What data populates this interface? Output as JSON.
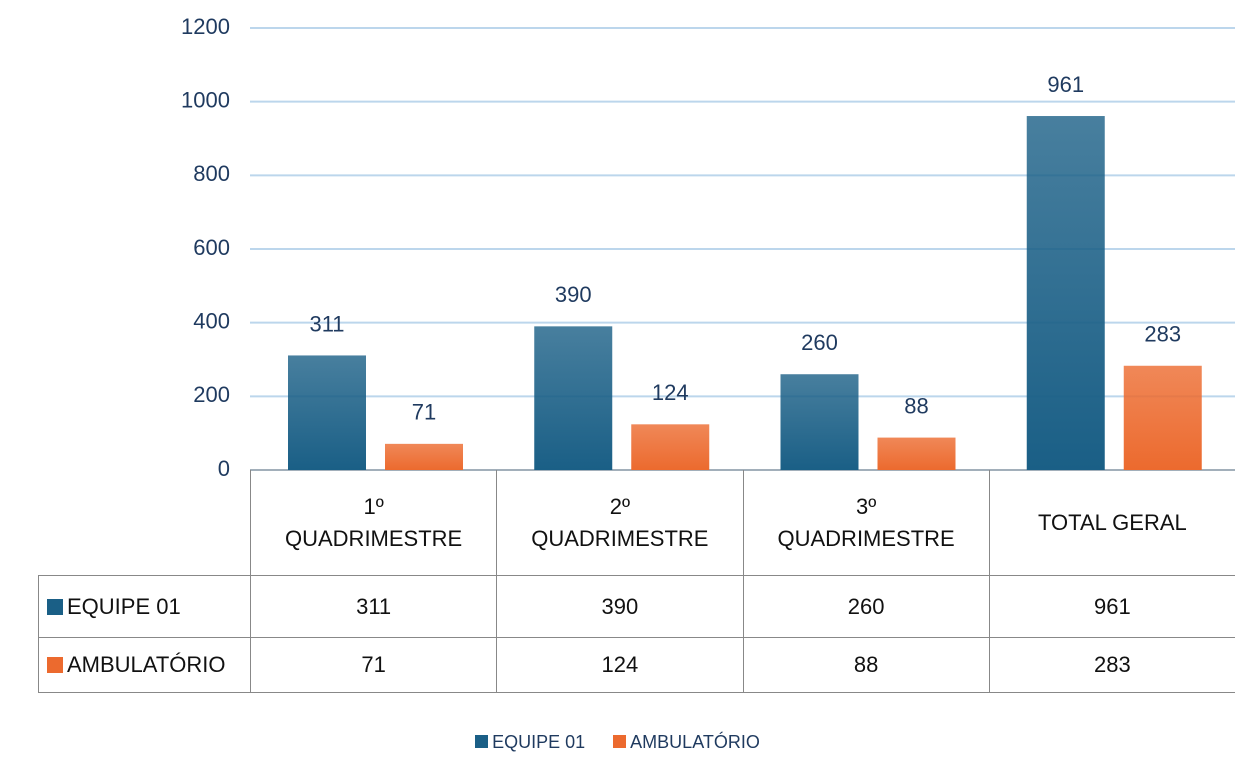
{
  "chart_data": {
    "type": "bar",
    "categories": [
      "1º QUADRIMESTRE",
      "2º QUADRIMESTRE",
      "3º QUADRIMESTRE",
      "TOTAL GERAL"
    ],
    "series": [
      {
        "name": "EQUIPE 01",
        "color": "#1a5f86",
        "values": [
          311,
          390,
          260,
          961
        ]
      },
      {
        "name": "AMBULATÓRIO",
        "color": "#ec6a2e",
        "values": [
          71,
          124,
          88,
          283
        ]
      }
    ],
    "ylim": [
      0,
      1200
    ],
    "yticks": [
      0,
      200,
      400,
      600,
      800,
      1000,
      1200
    ],
    "grid": true
  }
}
